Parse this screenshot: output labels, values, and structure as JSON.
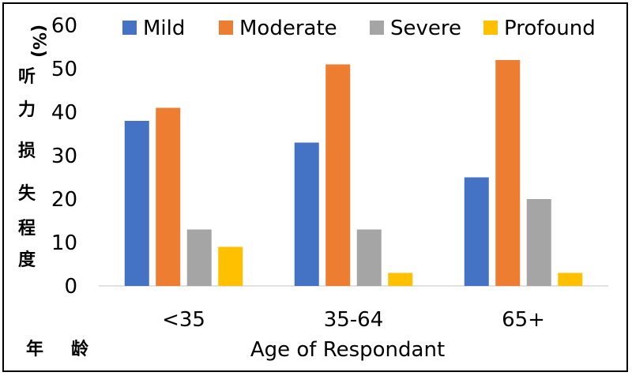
{
  "chart_data": {
    "type": "bar",
    "categories": [
      "<35",
      "35-64",
      "65+"
    ],
    "series": [
      {
        "name": "Mild",
        "values": [
          38,
          33,
          25
        ],
        "color": "#4472C4"
      },
      {
        "name": "Moderate",
        "values": [
          41,
          51,
          52
        ],
        "color": "#ED7D31"
      },
      {
        "name": "Severe",
        "values": [
          13,
          13,
          20
        ],
        "color": "#A5A5A5"
      },
      {
        "name": "Profound",
        "values": [
          9,
          3,
          3
        ],
        "color": "#FFC000"
      }
    ],
    "ylim": [
      0,
      60
    ],
    "yticks": [
      "0",
      "10",
      "20",
      "30",
      "40",
      "50",
      "60"
    ],
    "ylabel_unit": "(%)",
    "ylabel_chars": [
      "听",
      "力",
      "损",
      "失",
      "程",
      "度"
    ],
    "xlabel_cn_chars": [
      "年",
      "龄"
    ],
    "xlabel": "Age of Respondant",
    "legend_position": "top",
    "grid": false
  }
}
